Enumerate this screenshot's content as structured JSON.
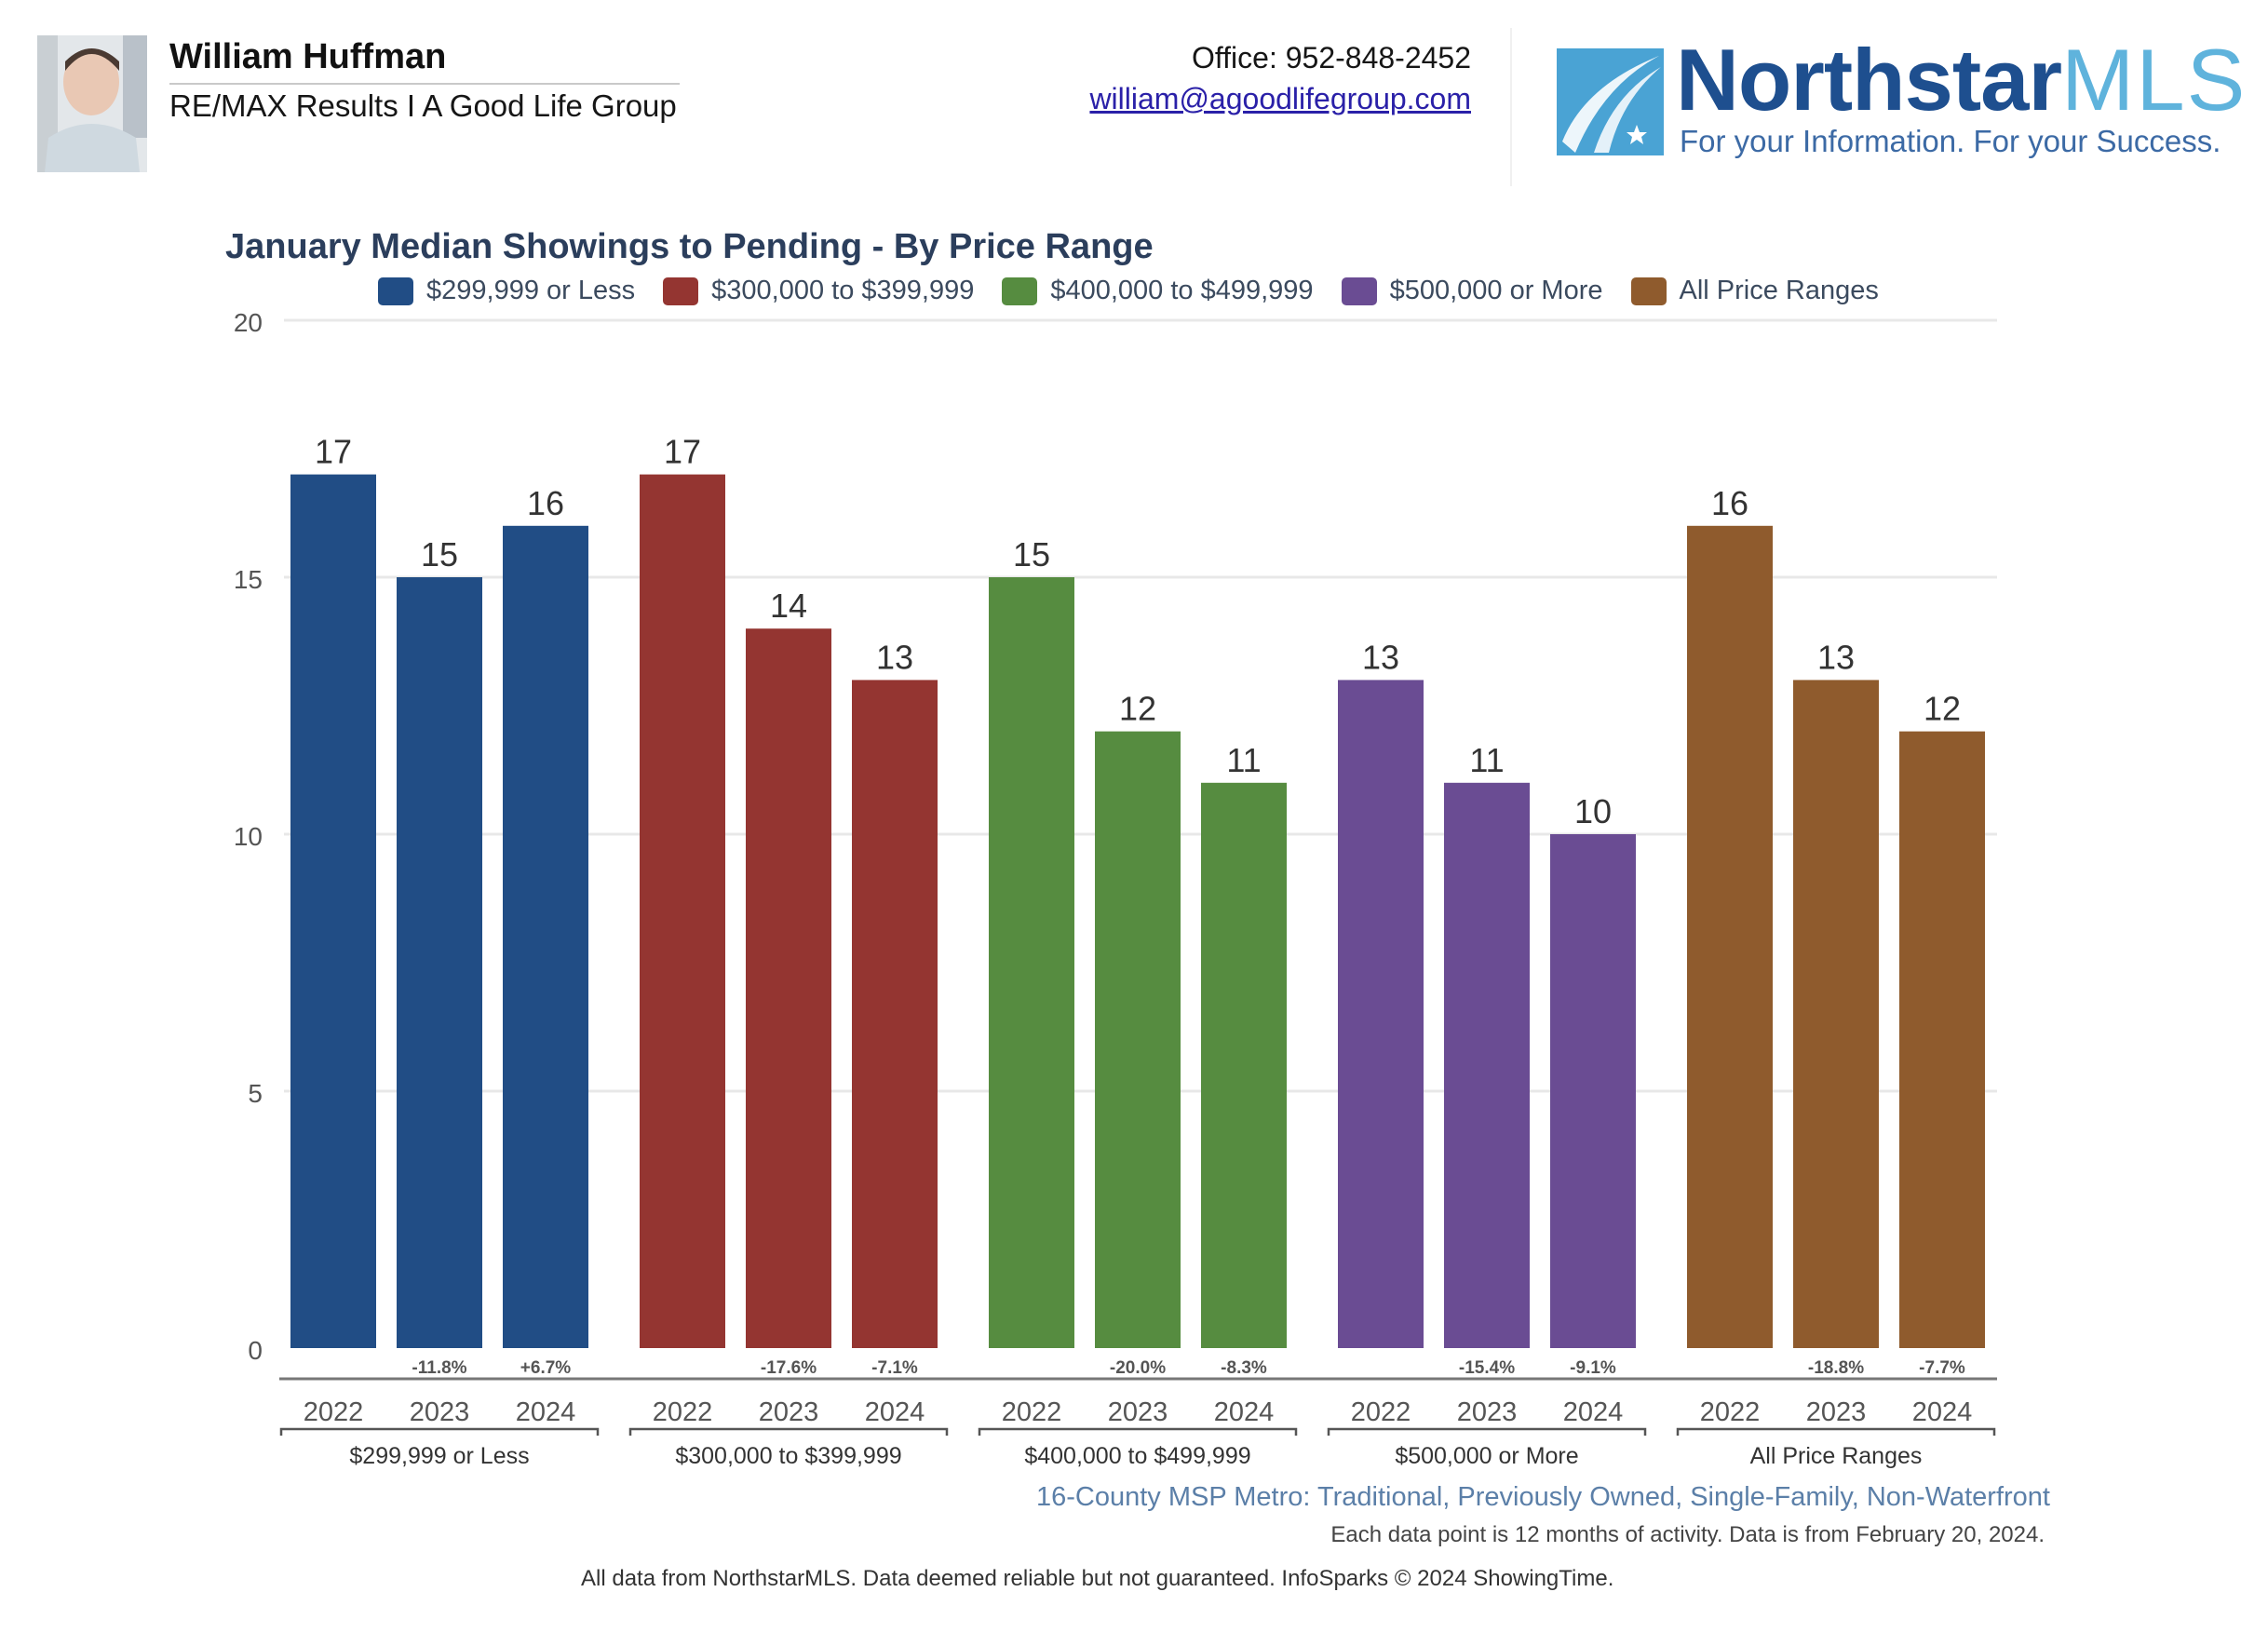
{
  "header": {
    "agent_name": "William Huffman",
    "agent_company": "RE/MAX Results I A Good Life Group",
    "office_phone": "Office: 952-848-2452",
    "email": "william@agoodlifegroup.com",
    "photo_icon": "agent-photo",
    "logo": {
      "word": "Northstar",
      "suffix": "MLS",
      "tagline": "For your Information. For your Success.",
      "colors": {
        "primary": "#1e4f8f",
        "secondary": "#5fb3dc"
      }
    }
  },
  "footnotes": {
    "area": "16-County MSP Metro: Traditional, Previously Owned, Single-Family, Non-Waterfront",
    "period": "Each data point is 12 months of activity. Data is from February 20, 2024.",
    "source": "All data from NorthstarMLS. Data deemed reliable but not guaranteed. InfoSparks © 2024 ShowingTime."
  },
  "chart_data": {
    "type": "bar",
    "title": "January Median Showings to Pending - By Price Range",
    "xlabel": "",
    "ylabel": "",
    "ylim": [
      0,
      20
    ],
    "yticks": [
      0,
      5,
      10,
      15,
      20
    ],
    "grid": true,
    "legend_position": "top",
    "legend": [
      {
        "label": "$299,999 or Less",
        "color": "#214d85"
      },
      {
        "label": "$300,000 to $399,999",
        "color": "#943531"
      },
      {
        "label": "$400,000 to $499,999",
        "color": "#568c40"
      },
      {
        "label": "$500,000 or More",
        "color": "#6a4c93"
      },
      {
        "label": "All Price Ranges",
        "color": "#8f5b2d"
      }
    ],
    "categories": [
      "2022",
      "2023",
      "2024"
    ],
    "groups": [
      {
        "name": "$299,999 or Less",
        "color": "#214d85",
        "values": [
          17,
          15,
          16
        ],
        "changes": [
          "",
          "-11.8%",
          "+6.7%"
        ]
      },
      {
        "name": "$300,000 to $399,999",
        "color": "#943531",
        "values": [
          17,
          14,
          13
        ],
        "changes": [
          "",
          "-17.6%",
          "-7.1%"
        ]
      },
      {
        "name": "$400,000 to $499,999",
        "color": "#568c40",
        "values": [
          15,
          12,
          11
        ],
        "changes": [
          "",
          "-20.0%",
          "-8.3%"
        ]
      },
      {
        "name": "$500,000 or More",
        "color": "#6a4c93",
        "values": [
          13,
          11,
          10
        ],
        "changes": [
          "",
          "-15.4%",
          "-9.1%"
        ]
      },
      {
        "name": "All Price Ranges",
        "color": "#8f5b2d",
        "values": [
          16,
          13,
          12
        ],
        "changes": [
          "",
          "-18.8%",
          "-7.7%"
        ]
      }
    ]
  }
}
